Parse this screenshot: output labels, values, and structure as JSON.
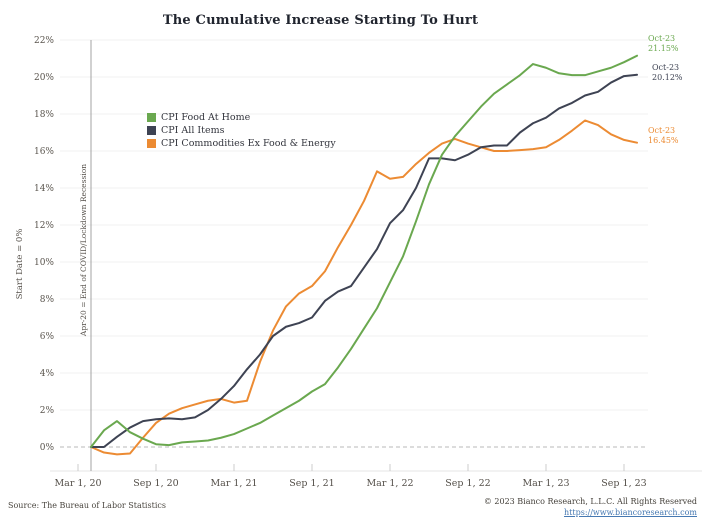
{
  "title": "The Cumulative Increase Starting To Hurt",
  "y_axis_label": "Start Date = 0%",
  "annotation": {
    "text": "Apr-20 = End of COVID/Lockdown Recession"
  },
  "legend": {
    "items": [
      {
        "label": "CPI Food At Home",
        "color": "#6aa84f"
      },
      {
        "label": "CPI All Items",
        "color": "#3e4353"
      },
      {
        "label": "CPI Commodities Ex Food & Energy",
        "color": "#ec8b33"
      }
    ]
  },
  "end_labels": [
    {
      "date": "Oct-23",
      "value": "21.15%"
    },
    {
      "date": "Oct-23",
      "value": "20.12%"
    },
    {
      "date": "Oct-23",
      "value": "16.45%"
    }
  ],
  "footer": {
    "source": "Source: The Bureau of Labor Statistics",
    "copyright": "© 2023 Bianco Research, L.L.C. All Rights Reserved",
    "link": "https://www.biancoresearch.com"
  },
  "chart_data": {
    "type": "line",
    "title": "The Cumulative Increase Starting To Hurt",
    "ylabel": "Start Date = 0%",
    "ylim": [
      -1.3,
      22.4
    ],
    "grid": true,
    "legend_position": "upper left inside",
    "zero_baseline": "dashed gray line at 0%",
    "vline": {
      "x": "Apr-20",
      "label": "Apr-20 = End of COVID/Lockdown Recession"
    },
    "x_tick_labels": [
      "Mar 1, 20",
      "Sep 1, 20",
      "Mar 1, 21",
      "Sep 1, 21",
      "Mar 1, 22",
      "Sep 1, 22",
      "Mar 1, 23",
      "Sep 1, 23"
    ],
    "y_ticks": [
      "0%",
      "2%",
      "4%",
      "6%",
      "8%",
      "10%",
      "12%",
      "14%",
      "16%",
      "18%",
      "20%",
      "22%"
    ],
    "x": [
      "Apr-20",
      "May-20",
      "Jun-20",
      "Jul-20",
      "Aug-20",
      "Sep-20",
      "Oct-20",
      "Nov-20",
      "Dec-20",
      "Jan-21",
      "Feb-21",
      "Mar-21",
      "Apr-21",
      "May-21",
      "Jun-21",
      "Jul-21",
      "Aug-21",
      "Sep-21",
      "Oct-21",
      "Nov-21",
      "Dec-21",
      "Jan-22",
      "Feb-22",
      "Mar-22",
      "Apr-22",
      "May-22",
      "Jun-22",
      "Jul-22",
      "Aug-22",
      "Sep-22",
      "Oct-22",
      "Nov-22",
      "Dec-22",
      "Jan-23",
      "Feb-23",
      "Mar-23",
      "Apr-23",
      "May-23",
      "Jun-23",
      "Jul-23",
      "Aug-23",
      "Sep-23",
      "Oct-23"
    ],
    "series": [
      {
        "name": "CPI Food At Home",
        "color": "#6aa84f",
        "values": [
          0.0,
          0.9,
          1.4,
          0.8,
          0.45,
          0.15,
          0.1,
          0.25,
          0.3,
          0.35,
          0.5,
          0.7,
          1.0,
          1.3,
          1.7,
          2.1,
          2.5,
          3.0,
          3.4,
          4.3,
          5.3,
          6.4,
          7.5,
          8.9,
          10.3,
          12.2,
          14.2,
          15.8,
          16.8,
          17.6,
          18.4,
          19.1,
          19.6,
          20.1,
          20.7,
          20.5,
          20.2,
          20.1,
          20.1,
          20.3,
          20.5,
          20.8,
          21.15
        ]
      },
      {
        "name": "CPI All Items",
        "color": "#3e4353",
        "values": [
          0.0,
          0.0,
          0.55,
          1.05,
          1.4,
          1.5,
          1.55,
          1.5,
          1.6,
          2.0,
          2.6,
          3.3,
          4.2,
          5.0,
          6.0,
          6.5,
          6.7,
          7.0,
          7.9,
          8.4,
          8.7,
          9.7,
          10.7,
          12.1,
          12.8,
          14.0,
          15.6,
          15.6,
          15.5,
          15.8,
          16.2,
          16.3,
          16.3,
          17.0,
          17.5,
          17.8,
          18.3,
          18.6,
          19.0,
          19.2,
          19.7,
          20.05,
          20.12
        ]
      },
      {
        "name": "CPI Commodities Ex Food & Energy",
        "color": "#ec8b33",
        "values": [
          0.0,
          -0.3,
          -0.4,
          -0.35,
          0.5,
          1.3,
          1.8,
          2.1,
          2.3,
          2.5,
          2.6,
          2.4,
          2.5,
          4.6,
          6.3,
          7.6,
          8.3,
          8.7,
          9.5,
          10.8,
          12.0,
          13.3,
          14.9,
          14.5,
          14.6,
          15.3,
          15.9,
          16.4,
          16.65,
          16.4,
          16.2,
          16.0,
          16.0,
          16.05,
          16.1,
          16.2,
          16.6,
          17.1,
          17.65,
          17.4,
          16.9,
          16.6,
          16.45
        ]
      }
    ]
  }
}
